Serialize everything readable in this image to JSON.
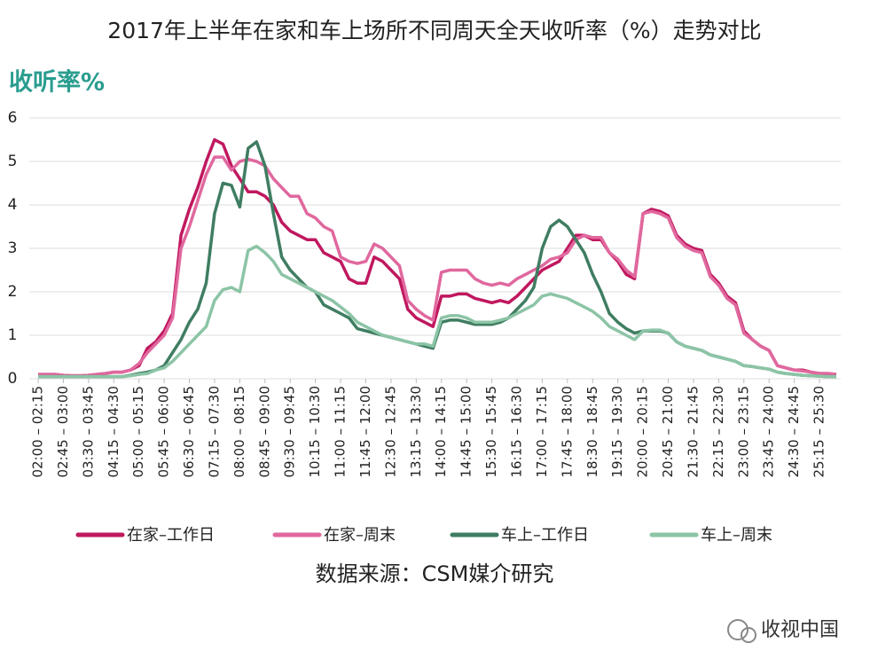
{
  "chart_data": {
    "type": "line",
    "title": "2017年上半年在家和车上场所不同周天全天收听率（%）走势对比",
    "y_axis_label": "收听率%",
    "source": "数据来源：CSM媒介研究",
    "watermark": "收视中国",
    "categories": [
      "02:00 – 02:15",
      null,
      null,
      "02:45 – 03:00",
      null,
      null,
      "03:30 – 03:45",
      null,
      null,
      "04:15 – 04:30",
      null,
      null,
      "05:00 – 05:15",
      null,
      null,
      "05:45 – 06:00",
      null,
      null,
      "06:30 – 06:45",
      null,
      null,
      "07:15 – 07:30",
      null,
      null,
      "08:00 – 08:15",
      null,
      null,
      "08:45 – 09:00",
      null,
      null,
      "09:30 – 09:45",
      null,
      null,
      "10:15 – 10:30",
      null,
      null,
      "11:00 – 11:15",
      null,
      null,
      "11:45 – 12:00",
      null,
      null,
      "12:30 – 12:45",
      null,
      null,
      "13:15 – 13:30",
      null,
      null,
      "14:00 – 14:15",
      null,
      null,
      "14:45 – 15:00",
      null,
      null,
      "15:30 – 15:45",
      null,
      null,
      "16:15 – 16:30",
      null,
      null,
      "17:00 – 17:15",
      null,
      null,
      "17:45 – 18:00",
      null,
      null,
      "18:30 – 18:45",
      null,
      null,
      "19:15 – 19:30",
      null,
      null,
      "20:00 – 20:15",
      null,
      null,
      "20:45 – 21:00",
      null,
      null,
      "21:30 – 21:45",
      null,
      null,
      "22:15 – 22:30",
      null,
      null,
      "23:00 – 23:15",
      null,
      null,
      "23:45 – 24:00",
      null,
      null,
      "24:30 – 24:45",
      null,
      null,
      "25:15 – 25:30",
      null,
      null
    ],
    "series": [
      {
        "name": "在家–工作日",
        "color": "#c0185f",
        "values": [
          0.1,
          0.1,
          0.1,
          0.08,
          0.07,
          0.07,
          0.08,
          0.1,
          0.12,
          0.15,
          0.15,
          0.2,
          0.3,
          0.7,
          0.85,
          1.1,
          1.5,
          3.3,
          3.9,
          4.4,
          5.0,
          5.5,
          5.4,
          4.9,
          4.6,
          4.3,
          4.3,
          4.2,
          4.0,
          3.6,
          3.4,
          3.3,
          3.2,
          3.2,
          2.9,
          2.8,
          2.7,
          2.3,
          2.2,
          2.2,
          2.8,
          2.7,
          2.5,
          2.3,
          1.6,
          1.4,
          1.3,
          1.2,
          1.9,
          1.9,
          1.95,
          1.95,
          1.85,
          1.8,
          1.75,
          1.8,
          1.75,
          1.9,
          2.1,
          2.3,
          2.5,
          2.6,
          2.7,
          3.0,
          3.3,
          3.3,
          3.2,
          3.2,
          2.9,
          2.7,
          2.4,
          2.3,
          3.8,
          3.9,
          3.85,
          3.75,
          3.3,
          3.1,
          3.0,
          2.95,
          2.4,
          2.2,
          1.9,
          1.75,
          1.1,
          0.9,
          0.75,
          0.65,
          0.3,
          0.25,
          0.2,
          0.2,
          0.15,
          0.12,
          0.12,
          0.1
        ]
      },
      {
        "name": "在家–周末",
        "color": "#e0689e",
        "values": [
          0.1,
          0.1,
          0.1,
          0.08,
          0.07,
          0.07,
          0.08,
          0.1,
          0.12,
          0.15,
          0.15,
          0.2,
          0.35,
          0.6,
          0.8,
          1.0,
          1.4,
          3.0,
          3.5,
          4.1,
          4.7,
          5.1,
          5.1,
          4.8,
          5.0,
          5.05,
          5.0,
          4.9,
          4.6,
          4.4,
          4.2,
          4.2,
          3.8,
          3.7,
          3.5,
          3.4,
          2.8,
          2.7,
          2.65,
          2.7,
          3.1,
          3.0,
          2.8,
          2.6,
          1.8,
          1.6,
          1.45,
          1.35,
          2.45,
          2.5,
          2.5,
          2.5,
          2.3,
          2.2,
          2.15,
          2.2,
          2.15,
          2.3,
          2.4,
          2.5,
          2.6,
          2.75,
          2.8,
          2.9,
          3.2,
          3.3,
          3.25,
          3.25,
          2.9,
          2.75,
          2.5,
          2.35,
          3.8,
          3.85,
          3.8,
          3.7,
          3.25,
          3.05,
          2.95,
          2.9,
          2.35,
          2.15,
          1.85,
          1.7,
          1.05,
          0.9,
          0.75,
          0.65,
          0.3,
          0.25,
          0.2,
          0.18,
          0.15,
          0.12,
          0.12,
          0.1
        ]
      },
      {
        "name": "车上–工作日",
        "color": "#3f7d61",
        "values": [
          0.05,
          0.05,
          0.05,
          0.05,
          0.05,
          0.05,
          0.05,
          0.05,
          0.05,
          0.05,
          0.05,
          0.08,
          0.12,
          0.15,
          0.2,
          0.3,
          0.6,
          0.9,
          1.3,
          1.6,
          2.2,
          3.8,
          4.5,
          4.45,
          3.95,
          5.3,
          5.45,
          4.9,
          3.8,
          2.8,
          2.5,
          2.3,
          2.1,
          2.0,
          1.7,
          1.6,
          1.5,
          1.4,
          1.15,
          1.1,
          1.05,
          1.0,
          0.95,
          0.9,
          0.85,
          0.8,
          0.75,
          0.7,
          1.3,
          1.35,
          1.35,
          1.3,
          1.25,
          1.25,
          1.25,
          1.3,
          1.4,
          1.6,
          1.8,
          2.1,
          3.0,
          3.5,
          3.65,
          3.5,
          3.2,
          2.9,
          2.4,
          2.0,
          1.5,
          1.3,
          1.15,
          1.05,
          1.1,
          1.1,
          1.1,
          1.05,
          0.85,
          0.75,
          0.7,
          0.65,
          0.55,
          0.5,
          0.45,
          0.4,
          0.3,
          0.28,
          0.25,
          0.22,
          0.15,
          0.12,
          0.1,
          0.08,
          0.07,
          0.06,
          0.05,
          0.05
        ]
      },
      {
        "name": "车上–周末",
        "color": "#8cc4a6",
        "values": [
          0.05,
          0.05,
          0.05,
          0.05,
          0.05,
          0.05,
          0.05,
          0.05,
          0.05,
          0.05,
          0.05,
          0.07,
          0.1,
          0.12,
          0.2,
          0.25,
          0.4,
          0.6,
          0.8,
          1.0,
          1.2,
          1.8,
          2.05,
          2.1,
          2.0,
          2.95,
          3.05,
          2.9,
          2.7,
          2.4,
          2.3,
          2.2,
          2.1,
          2.0,
          1.9,
          1.8,
          1.65,
          1.5,
          1.3,
          1.2,
          1.1,
          1.0,
          0.95,
          0.9,
          0.85,
          0.8,
          0.8,
          0.75,
          1.4,
          1.45,
          1.45,
          1.4,
          1.3,
          1.3,
          1.3,
          1.35,
          1.4,
          1.5,
          1.6,
          1.7,
          1.9,
          1.95,
          1.9,
          1.85,
          1.75,
          1.65,
          1.55,
          1.4,
          1.2,
          1.1,
          1.0,
          0.9,
          1.1,
          1.12,
          1.12,
          1.05,
          0.85,
          0.75,
          0.7,
          0.65,
          0.55,
          0.5,
          0.45,
          0.4,
          0.3,
          0.28,
          0.25,
          0.22,
          0.15,
          0.12,
          0.1,
          0.08,
          0.07,
          0.06,
          0.05,
          0.05
        ]
      }
    ],
    "ylim": [
      0,
      6
    ],
    "yticks": [
      0,
      1,
      2,
      3,
      4,
      5,
      6
    ],
    "grid": true,
    "legend": "bottom"
  }
}
